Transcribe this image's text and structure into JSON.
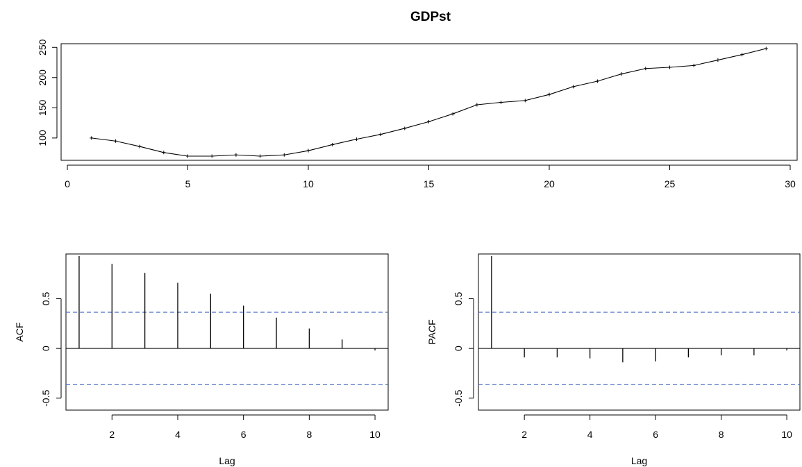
{
  "chart_data": [
    {
      "type": "line",
      "title": "GDPst",
      "xlabel": "",
      "ylabel": "",
      "xlim": [
        0,
        30
      ],
      "ylim": [
        65,
        255
      ],
      "xticks": [
        0,
        5,
        10,
        15,
        20,
        25,
        30
      ],
      "yticks": [
        100,
        150,
        200,
        250
      ],
      "series": [
        {
          "x": [
            1,
            2,
            3,
            4,
            5,
            6,
            7,
            8,
            9,
            10,
            11,
            12,
            13,
            14,
            15,
            16,
            17,
            18,
            19,
            20,
            21,
            22,
            23,
            24,
            25,
            26,
            27,
            28,
            29
          ],
          "values": [
            100,
            95,
            86,
            76,
            70,
            70,
            72,
            70,
            72,
            79,
            89,
            98,
            106,
            116,
            127,
            140,
            155,
            159,
            162,
            172,
            185,
            194,
            206,
            215,
            217,
            220,
            229,
            238,
            248
          ]
        }
      ],
      "point_markers": true,
      "grid": false
    },
    {
      "type": "bar",
      "title": "",
      "xlabel": "Lag",
      "ylabel": "ACF",
      "xlim": [
        0.6,
        10.4
      ],
      "ylim": [
        -0.62,
        0.95
      ],
      "xticks": [
        2,
        4,
        6,
        8,
        10
      ],
      "yticks": [
        -0.5,
        0.0,
        0.5
      ],
      "lags": [
        1,
        2,
        3,
        4,
        5,
        6,
        7,
        8,
        9,
        10
      ],
      "values": [
        0.93,
        0.85,
        0.76,
        0.66,
        0.55,
        0.43,
        0.31,
        0.2,
        0.09,
        -0.02
      ],
      "confidence_bound": 0.364,
      "bound_color": "#4a6fbf",
      "grid": false
    },
    {
      "type": "bar",
      "title": "",
      "xlabel": "Lag",
      "ylabel": "PACF",
      "xlim": [
        0.6,
        10.4
      ],
      "ylim": [
        -0.62,
        0.95
      ],
      "xticks": [
        2,
        4,
        6,
        8,
        10
      ],
      "yticks": [
        -0.5,
        0.0,
        0.5
      ],
      "lags": [
        1,
        2,
        3,
        4,
        5,
        6,
        7,
        8,
        9,
        10
      ],
      "values": [
        0.93,
        -0.09,
        -0.09,
        -0.1,
        -0.14,
        -0.13,
        -0.09,
        -0.07,
        -0.07,
        -0.02
      ],
      "confidence_bound": 0.364,
      "bound_color": "#4a6fbf",
      "grid": false
    }
  ]
}
